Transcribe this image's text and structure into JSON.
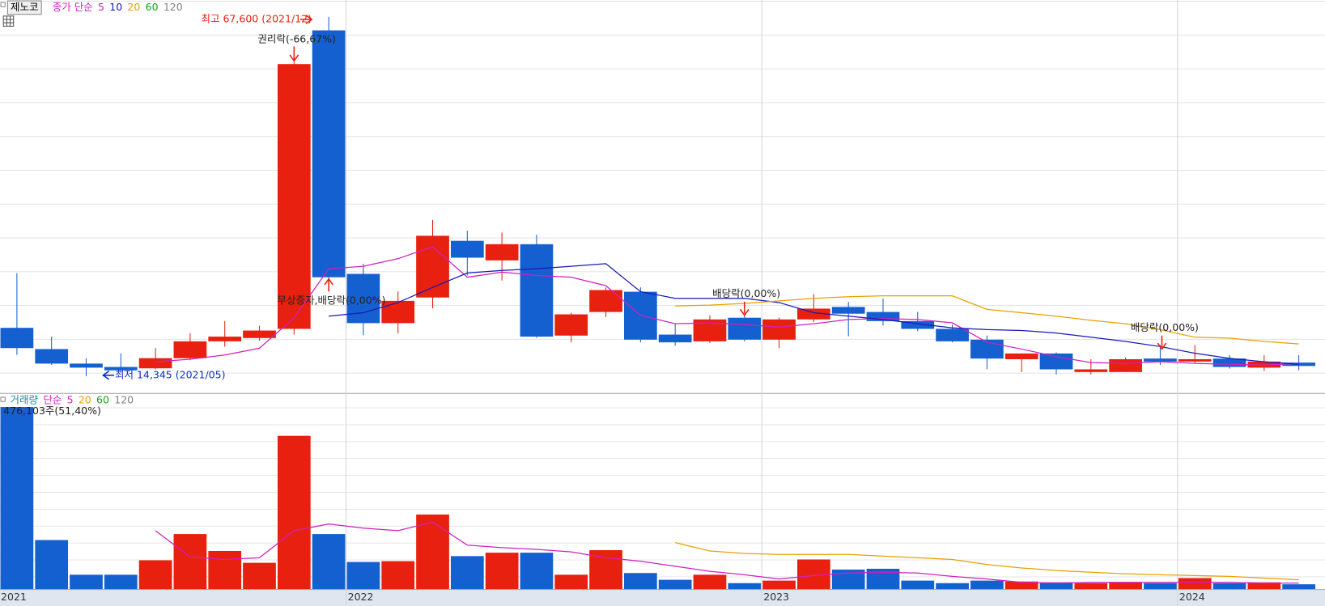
{
  "chart_data": {
    "type": "candlestick",
    "title": "제노코",
    "price_legend": {
      "name": "종가 단순",
      "periods": [
        5,
        10,
        20,
        60,
        120
      ],
      "colors": [
        "#d020c0",
        "#1818b8",
        "#e8a000",
        "#18a018",
        "#808080"
      ]
    },
    "volume_legend": {
      "name": "거래량",
      "method": "단순",
      "periods": [
        5,
        20,
        60,
        120
      ],
      "colors": [
        "#d020c0",
        "#e8a000",
        "#18a018",
        "#808080"
      ]
    },
    "x_start_label": "2021",
    "categories": [
      null,
      null,
      null,
      null,
      null,
      null,
      null,
      null,
      null,
      null,
      "2022",
      null,
      null,
      null,
      null,
      null,
      null,
      null,
      null,
      null,
      null,
      null,
      "2023",
      null,
      null,
      null,
      null,
      null,
      null,
      null,
      null,
      null,
      null,
      null,
      "2024",
      null,
      null,
      null
    ],
    "up_color": "#e8200f",
    "down_color": "#1560d0",
    "open": [
      21500,
      18350,
      16200,
      15700,
      15500,
      17000,
      19500,
      19990,
      21350,
      65600,
      29500,
      22200,
      26000,
      34400,
      31500,
      33900,
      20350,
      23850,
      26850,
      20500,
      19500,
      23000,
      19750,
      22750,
      24600,
      23850,
      22500,
      21350,
      19750,
      16850,
      17700,
      14950,
      14950,
      16950,
      16500,
      16950,
      15600,
      16350
    ],
    "close": [
      18500,
      16200,
      15600,
      15200,
      17000,
      19500,
      20200,
      21100,
      60600,
      29000,
      22200,
      25500,
      35150,
      31900,
      33900,
      20200,
      23500,
      27100,
      19750,
      19350,
      22750,
      19750,
      22750,
      24350,
      23600,
      22500,
      21350,
      19500,
      16950,
      17700,
      15350,
      15350,
      16850,
      16500,
      16850,
      15700,
      16500,
      15850
    ],
    "high": [
      29600,
      20200,
      17000,
      17700,
      18500,
      20700,
      22500,
      21800,
      61300,
      67600,
      31000,
      26900,
      37500,
      35900,
      35650,
      35300,
      23750,
      27500,
      27500,
      22100,
      23350,
      23500,
      23000,
      26500,
      25350,
      25850,
      23850,
      22000,
      20350,
      17700,
      17850,
      16850,
      17100,
      18950,
      18950,
      17450,
      17450,
      17450
    ],
    "low": [
      17500,
      16000,
      14345,
      14850,
      15350,
      16700,
      18700,
      19600,
      20500,
      28500,
      20400,
      20700,
      24400,
      29250,
      28500,
      20000,
      19350,
      23100,
      19350,
      18850,
      19250,
      19500,
      18500,
      22350,
      20250,
      21850,
      21000,
      19350,
      15350,
      14950,
      14600,
      14600,
      14950,
      16000,
      16200,
      15450,
      15100,
      15200
    ],
    "ylim": [
      11840,
      70100
    ],
    "ma": [
      {
        "name": "5",
        "color": "#d020c0",
        "values": [
          null,
          null,
          null,
          null,
          16475,
          16850,
          17480,
          18480,
          22990,
          30260,
          30630,
          31760,
          33520,
          29000,
          29760,
          29260,
          29000,
          27750,
          23360,
          22110,
          22240,
          21990,
          21610,
          22110,
          22740,
          22870,
          22740,
          22240,
          19360,
          18355,
          17230,
          16350,
          16230,
          16475,
          16230,
          16100,
          15975,
          16230
        ]
      },
      {
        "name": "10",
        "color": "#1818b8",
        "values": [
          null,
          null,
          null,
          null,
          null,
          null,
          null,
          null,
          null,
          23240,
          23740,
          25250,
          27500,
          29630,
          30010,
          30260,
          30630,
          31010,
          26870,
          25870,
          25870,
          25870,
          25250,
          23740,
          23240,
          22740,
          22110,
          21490,
          21240,
          21110,
          20735,
          20110,
          19480,
          18730,
          17730,
          16980,
          16475,
          16100
        ]
      },
      {
        "name": "20",
        "color": "#e8a000",
        "values": [
          null,
          null,
          null,
          null,
          null,
          null,
          null,
          null,
          null,
          null,
          null,
          null,
          null,
          null,
          null,
          null,
          null,
          null,
          null,
          24745,
          24870,
          25120,
          25500,
          25870,
          26120,
          26250,
          26250,
          26250,
          24240,
          23740,
          23240,
          22615,
          22110,
          21240,
          20110,
          19985,
          19480,
          19110
        ]
      }
    ],
    "volume": [
      18000000,
      4850000,
      1420000,
      1420000,
      2850000,
      5440000,
      3770000,
      2600000,
      15150000,
      5440000,
      2680000,
      2760000,
      7370000,
      3260000,
      3600000,
      3600000,
      1420000,
      3850000,
      1590000,
      920000,
      1420000,
      590000,
      840000,
      2930000,
      1930000,
      2010000,
      840000,
      590000,
      840000,
      750000,
      670000,
      590000,
      670000,
      590000,
      1090000,
      590000,
      670000,
      476103
    ],
    "vlim": [
      0,
      19300000
    ],
    "volume_ma": [
      {
        "name": "5",
        "color": "#d020c0",
        "values": [
          null,
          null,
          null,
          null,
          5780000,
          3180000,
          2930000,
          3100000,
          5780000,
          6440000,
          6030000,
          5780000,
          6610000,
          4350000,
          4100000,
          3930000,
          3680000,
          3100000,
          2760000,
          2260000,
          1760000,
          1420000,
          1000000,
          1340000,
          1590000,
          1670000,
          1590000,
          1260000,
          1000000,
          670000,
          590000,
          670000,
          670000,
          670000,
          670000,
          670000,
          590000,
          590000
        ]
      },
      {
        "name": "20",
        "color": "#e8a000",
        "values": [
          null,
          null,
          null,
          null,
          null,
          null,
          null,
          null,
          null,
          null,
          null,
          null,
          null,
          null,
          null,
          null,
          null,
          null,
          null,
          4600000,
          3770000,
          3520000,
          3430000,
          3430000,
          3430000,
          3260000,
          3100000,
          2930000,
          2430000,
          2090000,
          1840000,
          1670000,
          1510000,
          1420000,
          1340000,
          1260000,
          1090000,
          920000
        ]
      }
    ],
    "annotations": {
      "high": "최고 67,600 (2021/12)",
      "low": "최저 14,345 (2021/05)",
      "rights": "권리락(-66,67%)",
      "bonus": "무상증자,배당락(0,00%)",
      "div1": "배당락(0,00%)",
      "div2": "배당락(0,00%)",
      "volume_info": "476,103주(51,40%)"
    }
  }
}
